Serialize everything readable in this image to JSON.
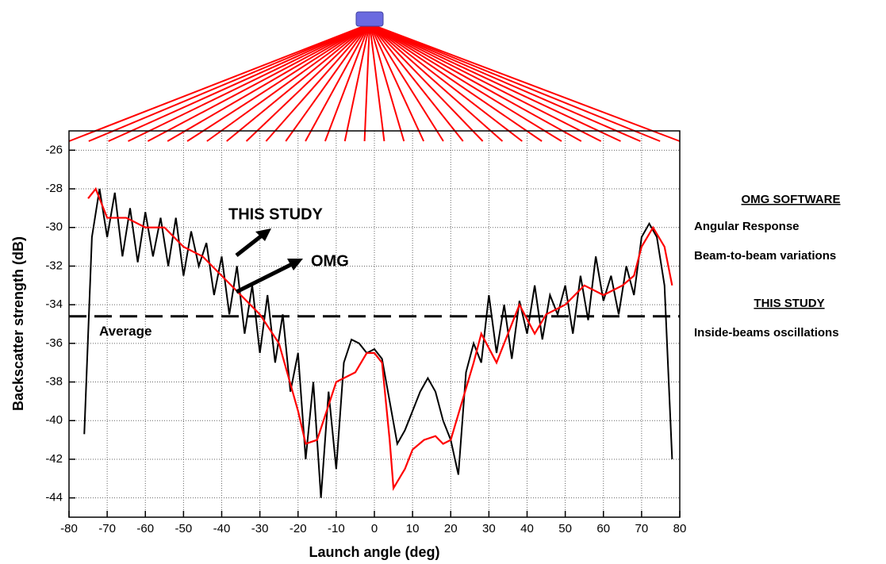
{
  "chart_data": {
    "type": "line",
    "x_label": "Launch angle (deg)",
    "y_label": "Backscatter strength (dB)",
    "xlim": [
      -80,
      80
    ],
    "ylim": [
      -45,
      -25
    ],
    "xticks": [
      -80,
      -70,
      -60,
      -50,
      -40,
      -30,
      -20,
      -10,
      0,
      10,
      20,
      30,
      40,
      50,
      60,
      70,
      80
    ],
    "yticks": [
      -44,
      -42,
      -40,
      -38,
      -36,
      -34,
      -32,
      -30,
      -28,
      -26
    ],
    "grid": true,
    "series": [
      {
        "name": "THIS STUDY",
        "color": "#000000",
        "x": [
          -76,
          -74,
          -72,
          -70,
          -68,
          -66,
          -64,
          -62,
          -60,
          -58,
          -56,
          -54,
          -52,
          -50,
          -48,
          -46,
          -44,
          -42,
          -40,
          -38,
          -36,
          -34,
          -32,
          -30,
          -28,
          -26,
          -24,
          -22,
          -20,
          -18,
          -16,
          -14,
          -12,
          -10,
          -8,
          -6,
          -4,
          -2,
          0,
          2,
          4,
          6,
          8,
          10,
          12,
          14,
          16,
          18,
          20,
          22,
          24,
          26,
          28,
          30,
          32,
          34,
          36,
          38,
          40,
          42,
          44,
          46,
          48,
          50,
          52,
          54,
          56,
          58,
          60,
          62,
          64,
          66,
          68,
          70,
          72,
          74,
          76,
          78
        ],
        "values": [
          -40.7,
          -30.5,
          -28.0,
          -30.5,
          -28.2,
          -31.5,
          -29.0,
          -31.8,
          -29.2,
          -31.5,
          -29.5,
          -32.0,
          -29.5,
          -32.5,
          -30.2,
          -32.0,
          -30.8,
          -33.5,
          -31.5,
          -34.5,
          -32.0,
          -35.5,
          -33.0,
          -36.5,
          -33.5,
          -37.0,
          -34.5,
          -38.5,
          -36.5,
          -42.0,
          -38.0,
          -44.0,
          -38.5,
          -42.5,
          -37.0,
          -35.8,
          -36.0,
          -36.5,
          -36.3,
          -36.8,
          -39.0,
          -41.2,
          -40.5,
          -39.5,
          -38.5,
          -37.8,
          -38.5,
          -40.0,
          -41.0,
          -42.8,
          -37.5,
          -36.0,
          -37.0,
          -33.5,
          -36.5,
          -34.0,
          -36.8,
          -33.8,
          -35.5,
          -33.0,
          -35.8,
          -33.5,
          -34.5,
          -33.0,
          -35.5,
          -32.5,
          -34.8,
          -31.5,
          -33.8,
          -32.5,
          -34.5,
          -32.0,
          -33.5,
          -30.5,
          -29.8,
          -30.5,
          -33.0,
          -42.0
        ]
      },
      {
        "name": "OMG",
        "color": "#ff0000",
        "x": [
          -75,
          -73,
          -70,
          -65,
          -60,
          -55,
          -50,
          -45,
          -40,
          -35,
          -30,
          -25,
          -20,
          -18,
          -15,
          -10,
          -5,
          -2,
          0,
          2,
          4,
          5,
          8,
          10,
          13,
          16,
          18,
          20,
          23,
          26,
          28,
          32,
          35,
          38,
          42,
          45,
          50,
          55,
          60,
          65,
          68,
          70,
          73,
          76,
          78
        ],
        "values": [
          -28.5,
          -28.0,
          -29.5,
          -29.5,
          -30.0,
          -30.0,
          -31.0,
          -31.5,
          -32.5,
          -33.5,
          -34.5,
          -36.0,
          -39.5,
          -41.2,
          -41.0,
          -38.0,
          -37.5,
          -36.5,
          -36.5,
          -37.0,
          -41.0,
          -43.5,
          -42.5,
          -41.5,
          -41.0,
          -40.8,
          -41.2,
          -41.0,
          -39.0,
          -37.0,
          -35.5,
          -37.0,
          -35.5,
          -34.0,
          -35.5,
          -34.5,
          -34.0,
          -33.0,
          -33.5,
          -33.0,
          -32.5,
          -31.0,
          -30.0,
          -31.0,
          -33.0
        ]
      }
    ],
    "average": {
      "label": "Average",
      "value": -34.6
    },
    "side_notes": {
      "omg_heading": "OMG SOFTWARE",
      "omg_lines": [
        "Angular Response",
        "Beam-to-beam variations"
      ],
      "study_heading": "THIS STUDY",
      "study_lines": [
        "Inside-beams oscillations"
      ]
    }
  }
}
